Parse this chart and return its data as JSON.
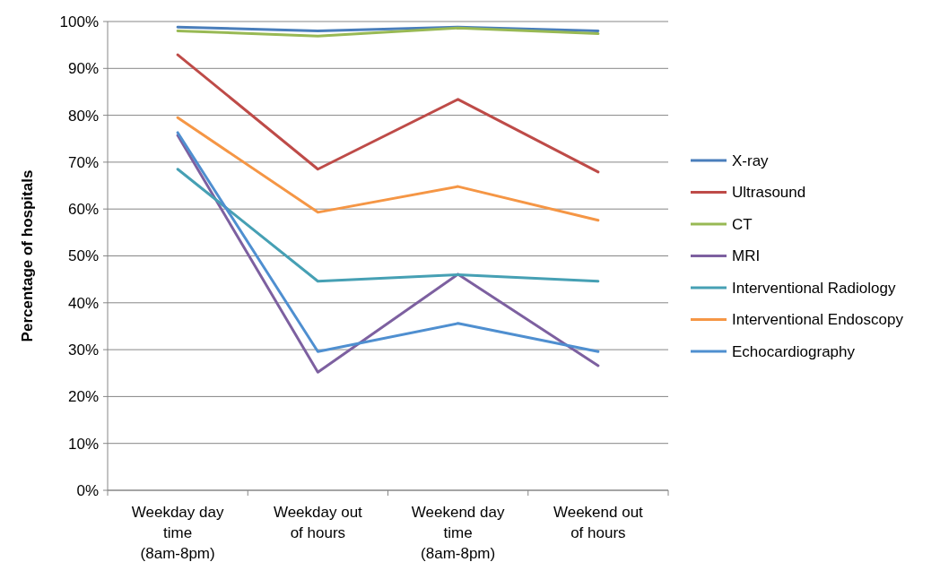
{
  "chart_data": {
    "type": "line",
    "ylabel": "Percentage of hospitals",
    "categories": [
      "Weekday day time (8am-8pm)",
      "Weekday out of hours",
      "Weekend day time (8am-8pm)",
      "Weekend out of hours"
    ],
    "series": [
      {
        "name": "X-ray",
        "color": "#4a7ebb",
        "values": [
          98.8,
          98.0,
          98.8,
          98.0
        ]
      },
      {
        "name": "Ultrasound",
        "color": "#be4b48",
        "values": [
          92.9,
          68.5,
          83.4,
          67.9
        ]
      },
      {
        "name": "CT",
        "color": "#98b954",
        "values": [
          98.0,
          96.9,
          98.6,
          97.4
        ]
      },
      {
        "name": "MRI",
        "color": "#7d60a0",
        "values": [
          75.7,
          25.2,
          46.1,
          26.6
        ]
      },
      {
        "name": "Interventional Radiology",
        "color": "#46a0b4",
        "values": [
          68.5,
          44.6,
          46.0,
          44.6
        ]
      },
      {
        "name": "Interventional Endoscopy",
        "color": "#f59645",
        "values": [
          79.5,
          59.3,
          64.8,
          57.6
        ]
      },
      {
        "name": "Echocardiography",
        "color": "#4f8fd0",
        "values": [
          76.3,
          29.6,
          35.6,
          29.6
        ]
      }
    ],
    "ylim": [
      0,
      100
    ],
    "yticks": [
      {
        "value": 0,
        "label": "0%"
      },
      {
        "value": 10,
        "label": "10%"
      },
      {
        "value": 20,
        "label": "20%"
      },
      {
        "value": 30,
        "label": "30%"
      },
      {
        "value": 40,
        "label": "40%"
      },
      {
        "value": 50,
        "label": "50%"
      },
      {
        "value": 60,
        "label": "60%"
      },
      {
        "value": 70,
        "label": "70%"
      },
      {
        "value": 80,
        "label": "80%"
      },
      {
        "value": 90,
        "label": "90%"
      },
      {
        "value": 100,
        "label": "100%"
      }
    ],
    "grid": "y",
    "legend": "right",
    "marker": "none",
    "line_style": "solid"
  }
}
